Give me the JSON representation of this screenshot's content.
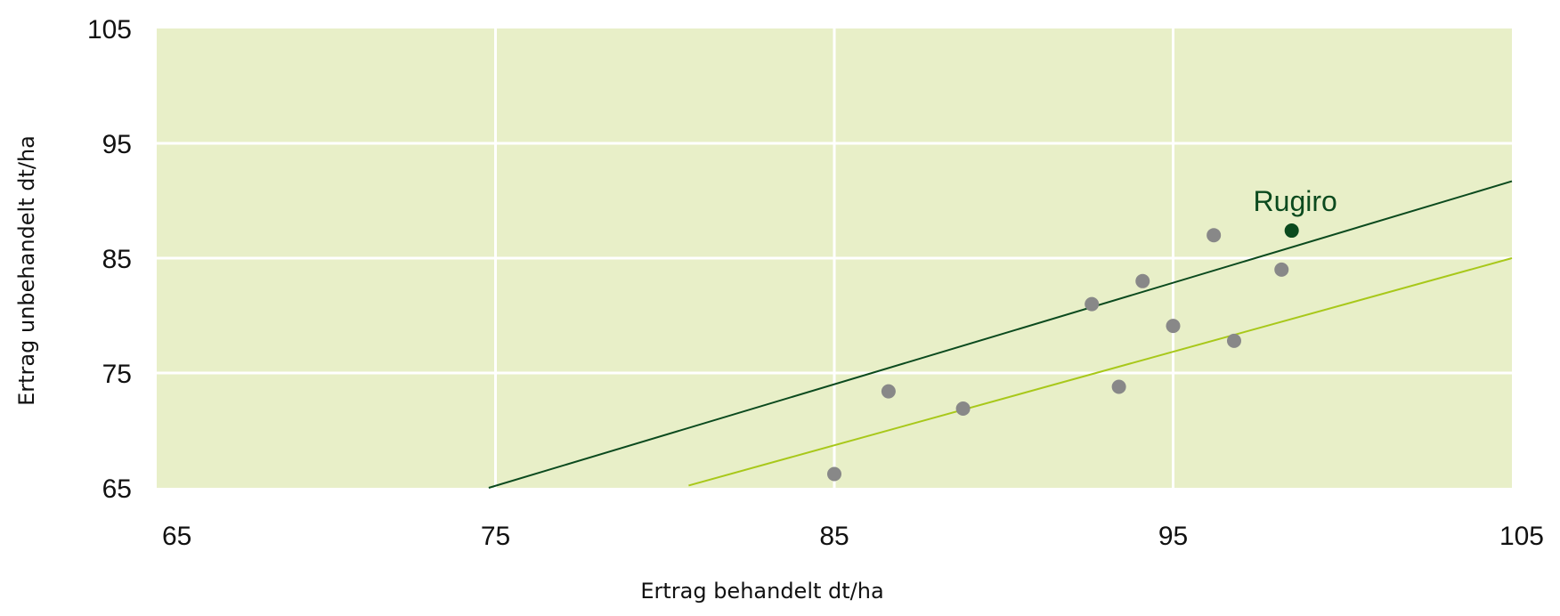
{
  "chart_data": {
    "type": "scatter",
    "xlabel": "Ertrag behandelt dt/ha",
    "ylabel": "Ertrag unbehandelt dt/ha",
    "xlim": [
      65,
      105
    ],
    "ylim": [
      65,
      105
    ],
    "xticks": [
      "65",
      "75",
      "85",
      "95",
      "105"
    ],
    "yticks": [
      "105",
      "95",
      "85",
      "75",
      "65"
    ],
    "grid": true,
    "plot_background": "#e8efc8",
    "grid_color": "#ffffff",
    "series": [
      {
        "color": "#888888",
        "points": [
          {
            "x": 85.0,
            "y": 66.2
          },
          {
            "x": 86.6,
            "y": 73.4
          },
          {
            "x": 88.8,
            "y": 71.9
          },
          {
            "x": 92.6,
            "y": 81.0
          },
          {
            "x": 93.4,
            "y": 73.8
          },
          {
            "x": 94.1,
            "y": 83.0
          },
          {
            "x": 95.0,
            "y": 79.1
          },
          {
            "x": 96.2,
            "y": 87.0
          },
          {
            "x": 96.8,
            "y": 77.8
          },
          {
            "x": 98.2,
            "y": 84.0
          }
        ]
      },
      {
        "color": "#0b4a1e",
        "points": [
          {
            "x": 98.5,
            "y": 87.4
          }
        ]
      }
    ],
    "lines": [
      {
        "color": "#0b4a1e",
        "x": [
          74.8,
          105
        ],
        "y": [
          65,
          91.7
        ]
      },
      {
        "color": "#a8c81a",
        "x": [
          80.7,
          105
        ],
        "y": [
          65.2,
          85.0
        ]
      }
    ],
    "annotations": [
      {
        "text": "Rugiro",
        "x": 98.5,
        "y": 87.4,
        "color": "#0b4a1e"
      }
    ]
  }
}
